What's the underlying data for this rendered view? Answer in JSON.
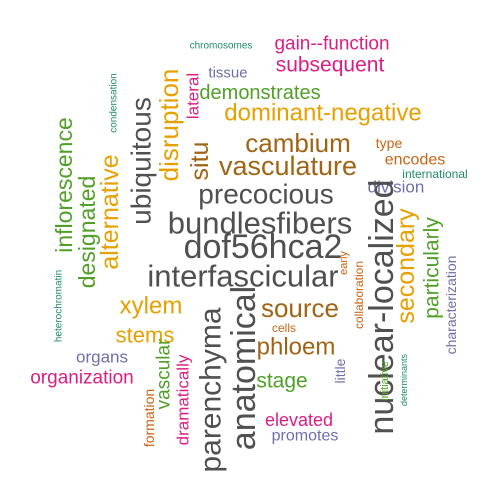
{
  "palette": {
    "grey": "#505050",
    "orange": "#E6A000",
    "brown": "#A06414",
    "rust": "#C86414",
    "green": "#50A028",
    "teal": "#1E8C64",
    "purple": "#6E6EAA",
    "magenta": "#DC1E82"
  },
  "words": [
    {
      "text": "gain--function",
      "color": "magenta"
    },
    {
      "text": "chromosomes",
      "color": "teal"
    },
    {
      "text": "subsequent",
      "color": "magenta"
    },
    {
      "text": "tissue",
      "color": "purple"
    },
    {
      "text": "demonstrates",
      "color": "green"
    },
    {
      "text": "lateral",
      "color": "magenta"
    },
    {
      "text": "disruption",
      "color": "orange"
    },
    {
      "text": "ubiquitous",
      "color": "grey"
    },
    {
      "text": "condensation",
      "color": "teal"
    },
    {
      "text": "dominant-negative",
      "color": "orange"
    },
    {
      "text": "cambium",
      "color": "brown"
    },
    {
      "text": "type",
      "color": "rust"
    },
    {
      "text": "situ",
      "color": "brown"
    },
    {
      "text": "vasculature",
      "color": "brown"
    },
    {
      "text": "encodes",
      "color": "rust"
    },
    {
      "text": "international",
      "color": "teal"
    },
    {
      "text": "precocious",
      "color": "grey"
    },
    {
      "text": "division",
      "color": "purple"
    },
    {
      "text": "inflorescence",
      "color": "green"
    },
    {
      "text": "alternative",
      "color": "orange"
    },
    {
      "text": "designated",
      "color": "green"
    },
    {
      "text": "bundlesfibers",
      "color": "grey"
    },
    {
      "text": "dof56hca2",
      "color": "grey"
    },
    {
      "text": "nuclear-localized",
      "color": "grey"
    },
    {
      "text": "secondary",
      "color": "orange"
    },
    {
      "text": "particularly",
      "color": "green"
    },
    {
      "text": "characterization",
      "color": "purple"
    },
    {
      "text": "heterochromatin",
      "color": "teal"
    },
    {
      "text": "interfascicular",
      "color": "grey"
    },
    {
      "text": "early",
      "color": "rust"
    },
    {
      "text": "collaboration",
      "color": "rust"
    },
    {
      "text": "xylem",
      "color": "orange"
    },
    {
      "text": "source",
      "color": "brown"
    },
    {
      "text": "anatomical",
      "color": "grey"
    },
    {
      "text": "parenchyma",
      "color": "grey"
    },
    {
      "text": "stems",
      "color": "orange"
    },
    {
      "text": "cells",
      "color": "rust"
    },
    {
      "text": "phloem",
      "color": "brown"
    },
    {
      "text": "organs",
      "color": "purple"
    },
    {
      "text": "vascular",
      "color": "green"
    },
    {
      "text": "dramatically",
      "color": "magenta"
    },
    {
      "text": "organization",
      "color": "magenta"
    },
    {
      "text": "stage",
      "color": "green"
    },
    {
      "text": "little",
      "color": "purple"
    },
    {
      "text": "initiative",
      "color": "green"
    },
    {
      "text": "determinants",
      "color": "teal"
    },
    {
      "text": "formation",
      "color": "rust"
    },
    {
      "text": "elevated",
      "color": "magenta"
    },
    {
      "text": "promotes",
      "color": "purple"
    }
  ]
}
